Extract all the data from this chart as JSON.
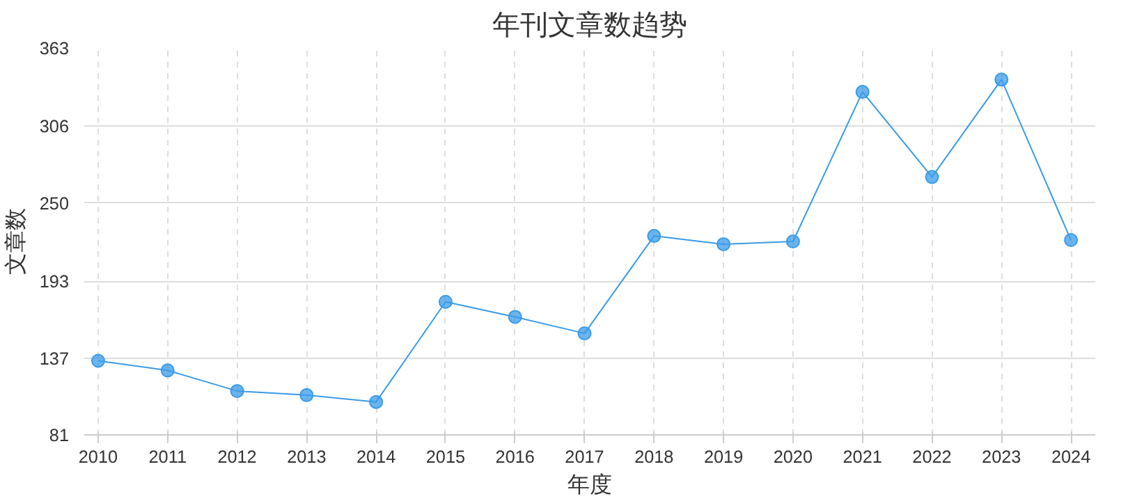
{
  "chart_data": {
    "type": "line",
    "title": "年刊文章数趋势",
    "xlabel": "年度",
    "ylabel": "文章数",
    "categories": [
      "2010",
      "2011",
      "2012",
      "2013",
      "2014",
      "2015",
      "2016",
      "2017",
      "2018",
      "2019",
      "2020",
      "2021",
      "2022",
      "2023",
      "2024"
    ],
    "series": [
      {
        "color": "#3a9be8",
        "values": [
          135,
          128,
          113,
          110,
          105,
          178,
          167,
          155,
          226,
          220,
          222,
          331,
          269,
          340,
          223
        ]
      }
    ],
    "ylim": [
      81,
      363
    ],
    "yticks": [
      81,
      137,
      193,
      250,
      306,
      363
    ],
    "grid": true,
    "marker": "circle",
    "line_style": "solid"
  }
}
